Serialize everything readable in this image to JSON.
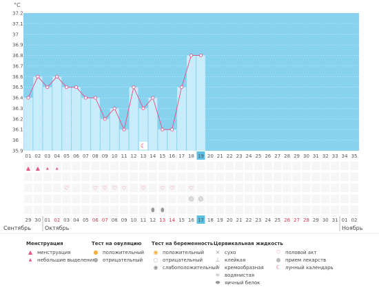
{
  "chart_data": {
    "type": "line",
    "unit_label": "°C",
    "ylim": [
      35.9,
      37.2
    ],
    "yticks": [
      "37.2",
      "37.1",
      "37",
      "36.9",
      "36.8",
      "36.7",
      "36.6",
      "36.5",
      "36.4",
      "36.3",
      "36.2",
      "36.1",
      "36",
      "35.9"
    ],
    "cycle_days": [
      "01",
      "02",
      "03",
      "04",
      "05",
      "06",
      "07",
      "08",
      "09",
      "10",
      "11",
      "12",
      "13",
      "14",
      "15",
      "16",
      "17",
      "18",
      "19",
      "20",
      "21",
      "22",
      "23",
      "24",
      "25",
      "26",
      "27",
      "28",
      "29",
      "30",
      "31",
      "32",
      "33",
      "34",
      "35"
    ],
    "current_day": "19",
    "temperatures": [
      36.4,
      36.6,
      36.5,
      36.6,
      36.5,
      36.5,
      36.4,
      36.4,
      36.2,
      36.3,
      36.1,
      36.5,
      36.3,
      36.4,
      36.1,
      36.1,
      36.5,
      36.8,
      36.8
    ],
    "dates": [
      "29",
      "30",
      "01",
      "02",
      "03",
      "04",
      "05",
      "06",
      "07",
      "08",
      "09",
      "10",
      "11",
      "12",
      "13",
      "14",
      "15",
      "16",
      "17",
      "18",
      "19",
      "20",
      "21",
      "22",
      "23",
      "24",
      "25",
      "26",
      "27",
      "28",
      "29",
      "30",
      "31",
      "01",
      "02"
    ],
    "red_dates_idx": [
      3,
      7,
      8,
      14,
      15,
      27,
      28,
      29
    ],
    "current_date_idx": 18,
    "months": [
      {
        "name": "Сентябрь"
      },
      {
        "name": "Октябрь"
      },
      {
        "name": "Ноябрь"
      }
    ],
    "markers": {
      "menstruation_days": [
        1,
        2
      ],
      "light_spotting_days": [
        3,
        4
      ],
      "intercourse_days": [
        5,
        8,
        9,
        10,
        11,
        13,
        15,
        16,
        18
      ],
      "lunar_day": 13,
      "ovulation_negative_days": [
        18,
        19
      ],
      "egg_white_cm_days": [
        14,
        15
      ]
    }
  },
  "legend": {
    "menstruation": {
      "title": "Менструация",
      "items": [
        "менструация",
        "небольшие выделения"
      ]
    },
    "ovulation_test": {
      "title": "Тест на овуляцию",
      "items": [
        "положительный",
        "отрицательный"
      ]
    },
    "pregnancy_test": {
      "title": "Тест на беременность",
      "items": [
        "положительный",
        "отрицательный",
        "слабоположительный"
      ]
    },
    "cervical": {
      "title": "Цервикальная жидкость",
      "items": [
        "сухо",
        "клейкая",
        "кремообразная",
        "водянистая",
        "яичный белок"
      ]
    },
    "other": {
      "items": [
        "половой акт",
        "прием лекарств",
        "лунный календарь"
      ]
    }
  },
  "colors": {
    "fill_bg": "#87d3ef",
    "bar": "#c9ecfb",
    "line": "#e0578a",
    "highlight": "#5bc0e4"
  }
}
